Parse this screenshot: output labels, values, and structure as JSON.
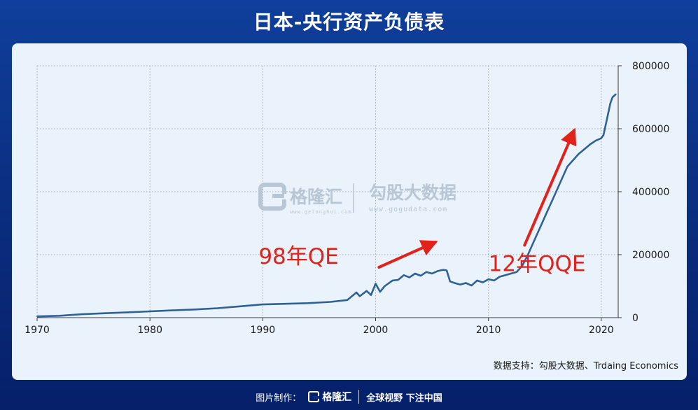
{
  "page": {
    "title": "日本-央行资产负债表",
    "source_note": "数据支持：勾股大数据、Trdaing Economics",
    "footer_credit": "图片制作：",
    "footer_logo": "格隆汇",
    "footer_slogan": "全球视野 下注中国"
  },
  "watermark": {
    "brand": "格隆汇",
    "brand_url": "www.gelonghui.com",
    "data_brand": "勾股大数据",
    "data_url": "www.gogudata.com"
  },
  "colors": {
    "background": "#0b2f82",
    "card": "#eaf3fb",
    "line": "#2e6196",
    "annotation": "#e0221b"
  },
  "chart_data": {
    "type": "line",
    "title": "日本-央行资产负债表",
    "xlabel": "",
    "ylabel": "",
    "xlim": [
      1970,
      2021.5
    ],
    "ylim": [
      0,
      800000
    ],
    "x_ticks": [
      1970,
      1980,
      1990,
      2000,
      2010,
      2020
    ],
    "y_ticks": [
      0,
      200000,
      400000,
      600000,
      800000
    ],
    "y_tick_labels": [
      "0",
      "200000",
      "400000",
      "600000",
      "800000"
    ],
    "y_axis_side": "right",
    "grid": true,
    "series": [
      {
        "name": "",
        "color": "#2e6196",
        "points": [
          [
            1970,
            4000
          ],
          [
            1972,
            6000
          ],
          [
            1974,
            11000
          ],
          [
            1976,
            14000
          ],
          [
            1978,
            17000
          ],
          [
            1980,
            20000
          ],
          [
            1982,
            23000
          ],
          [
            1984,
            26000
          ],
          [
            1986,
            30000
          ],
          [
            1988,
            36000
          ],
          [
            1990,
            42000
          ],
          [
            1992,
            44000
          ],
          [
            1994,
            46000
          ],
          [
            1996,
            50000
          ],
          [
            1997.5,
            56000
          ],
          [
            1998.3,
            80000
          ],
          [
            1998.6,
            68000
          ],
          [
            1999.2,
            85000
          ],
          [
            1999.6,
            72000
          ],
          [
            2000.0,
            108000
          ],
          [
            2000.4,
            82000
          ],
          [
            2000.8,
            100000
          ],
          [
            2001.5,
            118000
          ],
          [
            2002.0,
            120000
          ],
          [
            2002.5,
            135000
          ],
          [
            2003.0,
            128000
          ],
          [
            2003.5,
            140000
          ],
          [
            2004.0,
            133000
          ],
          [
            2004.5,
            145000
          ],
          [
            2005.0,
            140000
          ],
          [
            2005.5,
            148000
          ],
          [
            2006.0,
            152000
          ],
          [
            2006.3,
            150000
          ],
          [
            2006.6,
            115000
          ],
          [
            2007.0,
            110000
          ],
          [
            2007.5,
            105000
          ],
          [
            2008.0,
            110000
          ],
          [
            2008.5,
            102000
          ],
          [
            2009.0,
            118000
          ],
          [
            2009.5,
            112000
          ],
          [
            2010.0,
            122000
          ],
          [
            2010.5,
            118000
          ],
          [
            2011.0,
            130000
          ],
          [
            2011.5,
            135000
          ],
          [
            2012.0,
            140000
          ],
          [
            2012.5,
            145000
          ],
          [
            2013.0,
            165000
          ],
          [
            2013.5,
            200000
          ],
          [
            2014.0,
            240000
          ],
          [
            2014.5,
            280000
          ],
          [
            2015.0,
            320000
          ],
          [
            2015.5,
            360000
          ],
          [
            2016.0,
            400000
          ],
          [
            2016.5,
            440000
          ],
          [
            2017.0,
            480000
          ],
          [
            2017.5,
            500000
          ],
          [
            2018.0,
            520000
          ],
          [
            2018.5,
            535000
          ],
          [
            2019.0,
            550000
          ],
          [
            2019.5,
            562000
          ],
          [
            2020.0,
            570000
          ],
          [
            2020.2,
            580000
          ],
          [
            2020.5,
            630000
          ],
          [
            2020.8,
            680000
          ],
          [
            2021.0,
            700000
          ],
          [
            2021.3,
            710000
          ]
        ]
      }
    ],
    "annotations": [
      {
        "text": "98年QE",
        "arrow_from": [
          2000.3,
          160000
        ],
        "arrow_to": [
          2005.3,
          240000
        ]
      },
      {
        "text": "12年QQE",
        "arrow_from": [
          2013.2,
          230000
        ],
        "arrow_to": [
          2017.6,
          595000
        ]
      }
    ]
  }
}
